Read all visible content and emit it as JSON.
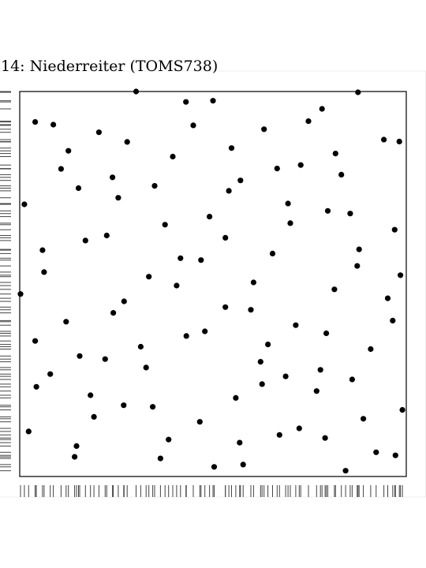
{
  "chart_data": {
    "type": "scatter",
    "title": "14: Niederreiter (TOMS738)",
    "xlabel": "",
    "ylabel": "",
    "xlim": [
      0,
      1
    ],
    "ylim": [
      0,
      1
    ],
    "grid": false,
    "legend": "none",
    "rug": {
      "x_axis": "bottom",
      "y_axis": "left"
    },
    "points": [
      [
        0.301,
        1.0
      ],
      [
        0.875,
        0.998
      ],
      [
        0.43,
        0.973
      ],
      [
        0.5,
        0.976
      ],
      [
        0.782,
        0.955
      ],
      [
        0.04,
        0.921
      ],
      [
        0.087,
        0.914
      ],
      [
        0.747,
        0.923
      ],
      [
        0.449,
        0.912
      ],
      [
        0.632,
        0.902
      ],
      [
        0.205,
        0.894
      ],
      [
        0.278,
        0.869
      ],
      [
        0.942,
        0.875
      ],
      [
        0.982,
        0.87
      ],
      [
        0.126,
        0.846
      ],
      [
        0.817,
        0.839
      ],
      [
        0.548,
        0.853
      ],
      [
        0.396,
        0.831
      ],
      [
        0.666,
        0.8
      ],
      [
        0.727,
        0.809
      ],
      [
        0.107,
        0.799
      ],
      [
        0.832,
        0.784
      ],
      [
        0.24,
        0.777
      ],
      [
        0.571,
        0.769
      ],
      [
        0.349,
        0.755
      ],
      [
        0.152,
        0.749
      ],
      [
        0.541,
        0.742
      ],
      [
        0.255,
        0.724
      ],
      [
        0.012,
        0.707
      ],
      [
        0.694,
        0.709
      ],
      [
        0.797,
        0.69
      ],
      [
        0.855,
        0.683
      ],
      [
        0.491,
        0.675
      ],
      [
        0.7,
        0.658
      ],
      [
        0.376,
        0.654
      ],
      [
        0.97,
        0.641
      ],
      [
        0.532,
        0.62
      ],
      [
        0.225,
        0.626
      ],
      [
        0.17,
        0.613
      ],
      [
        0.878,
        0.59
      ],
      [
        0.059,
        0.588
      ],
      [
        0.654,
        0.579
      ],
      [
        0.416,
        0.567
      ],
      [
        0.469,
        0.562
      ],
      [
        0.873,
        0.547
      ],
      [
        0.063,
        0.531
      ],
      [
        0.334,
        0.519
      ],
      [
        0.985,
        0.523
      ],
      [
        0.605,
        0.504
      ],
      [
        0.406,
        0.496
      ],
      [
        0.814,
        0.486
      ],
      [
        0.002,
        0.474
      ],
      [
        0.952,
        0.463
      ],
      [
        0.27,
        0.455
      ],
      [
        0.242,
        0.425
      ],
      [
        0.532,
        0.44
      ],
      [
        0.598,
        0.433
      ],
      [
        0.12,
        0.402
      ],
      [
        0.965,
        0.405
      ],
      [
        0.714,
        0.393
      ],
      [
        0.793,
        0.372
      ],
      [
        0.479,
        0.377
      ],
      [
        0.431,
        0.365
      ],
      [
        0.04,
        0.352
      ],
      [
        0.313,
        0.337
      ],
      [
        0.642,
        0.343
      ],
      [
        0.908,
        0.331
      ],
      [
        0.155,
        0.313
      ],
      [
        0.221,
        0.305
      ],
      [
        0.623,
        0.298
      ],
      [
        0.327,
        0.283
      ],
      [
        0.778,
        0.277
      ],
      [
        0.079,
        0.266
      ],
      [
        0.688,
        0.26
      ],
      [
        0.043,
        0.233
      ],
      [
        0.86,
        0.252
      ],
      [
        0.768,
        0.222
      ],
      [
        0.183,
        0.211
      ],
      [
        0.627,
        0.24
      ],
      [
        0.269,
        0.185
      ],
      [
        0.344,
        0.181
      ],
      [
        0.559,
        0.204
      ],
      [
        0.192,
        0.155
      ],
      [
        0.99,
        0.173
      ],
      [
        0.889,
        0.15
      ],
      [
        0.466,
        0.142
      ],
      [
        0.023,
        0.117
      ],
      [
        0.672,
        0.108
      ],
      [
        0.723,
        0.125
      ],
      [
        0.385,
        0.096
      ],
      [
        0.79,
        0.1
      ],
      [
        0.569,
        0.088
      ],
      [
        0.147,
        0.079
      ],
      [
        0.922,
        0.063
      ],
      [
        0.142,
        0.051
      ],
      [
        0.972,
        0.055
      ],
      [
        0.364,
        0.047
      ],
      [
        0.578,
        0.031
      ],
      [
        0.503,
        0.025
      ],
      [
        0.843,
        0.015
      ]
    ]
  }
}
